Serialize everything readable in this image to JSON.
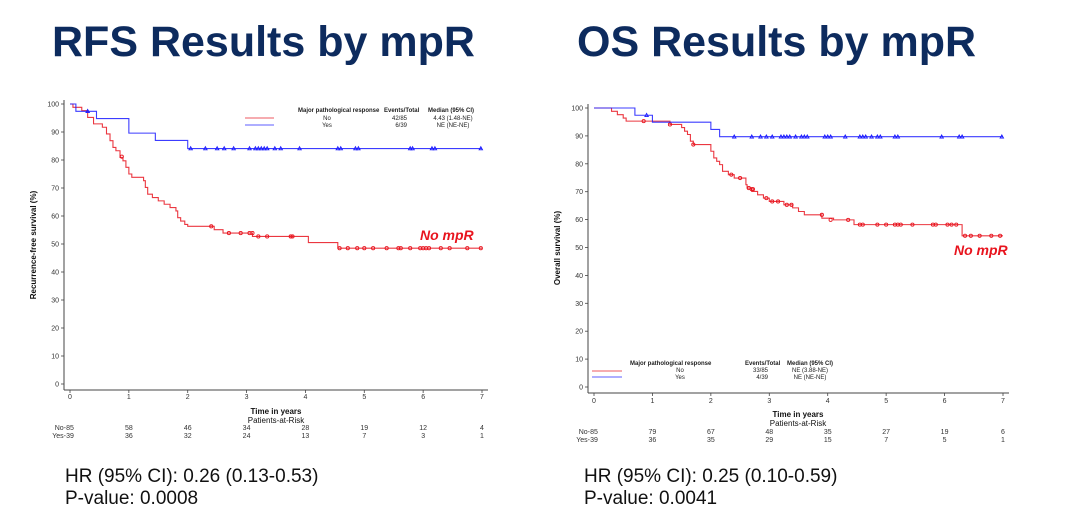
{
  "colors": {
    "title": "#0d2b5e",
    "no": "#e8141e",
    "yes": "#1a1aff",
    "axis": "#444444"
  },
  "chart_data": [
    {
      "type": "line",
      "title": "RFS Results by mpR",
      "xlabel": "Time in years",
      "ylabel": "Recurrence-free survival (%)",
      "xlim": [
        0,
        7
      ],
      "ylim": [
        0,
        100
      ],
      "x_ticks": [
        "0",
        "1",
        "2",
        "3",
        "4",
        "5",
        "6",
        "7"
      ],
      "y_ticks": [
        "0",
        "10",
        "20",
        "30",
        "40",
        "50",
        "60",
        "70",
        "80",
        "90",
        "100"
      ],
      "annotation": "No mpR",
      "legend": {
        "placement": "top-right",
        "header": [
          "Major pathological response",
          "Events/Total",
          "Median (95% CI)"
        ],
        "rows": [
          {
            "group": "No",
            "events": "42/85",
            "median": "4.43 (1.48-NE)"
          },
          {
            "group": "Yes",
            "events": "6/39",
            "median": "NE (NE-NE)"
          }
        ]
      },
      "risk_table": {
        "title": "Patients-at-Risk",
        "rows": [
          {
            "label": "No-",
            "values": [
              "85",
              "58",
              "46",
              "34",
              "28",
              "19",
              "12",
              "4"
            ]
          },
          {
            "label": "Yes-",
            "values": [
              "39",
              "36",
              "32",
              "24",
              "13",
              "7",
              "3",
              "1"
            ]
          }
        ]
      },
      "series": [
        {
          "name": "No",
          "steps": [
            [
              0,
              100
            ],
            [
              0.05,
              98.8
            ],
            [
              0.2,
              97.6
            ],
            [
              0.3,
              95.2
            ],
            [
              0.4,
              92.9
            ],
            [
              0.55,
              91.7
            ],
            [
              0.62,
              89.3
            ],
            [
              0.68,
              86.9
            ],
            [
              0.73,
              84.5
            ],
            [
              0.78,
              83.3
            ],
            [
              0.85,
              80.9
            ],
            [
              0.9,
              79.7
            ],
            [
              0.95,
              77.4
            ],
            [
              1.0,
              75
            ],
            [
              1.05,
              73.8
            ],
            [
              1.25,
              72.6
            ],
            [
              1.28,
              70.2
            ],
            [
              1.32,
              67.8
            ],
            [
              1.4,
              66.6
            ],
            [
              1.5,
              65.4
            ],
            [
              1.6,
              64.2
            ],
            [
              1.7,
              63
            ],
            [
              1.8,
              61.8
            ],
            [
              1.83,
              59.4
            ],
            [
              1.88,
              58.2
            ],
            [
              1.95,
              57
            ],
            [
              2.0,
              56.3
            ],
            [
              2.45,
              55.1
            ],
            [
              2.6,
              53.9
            ],
            [
              3.1,
              52.7
            ],
            [
              3.72,
              52.7
            ],
            [
              4.05,
              50.5
            ],
            [
              4.55,
              48.5
            ]
          ],
          "end": 7,
          "censored": [
            [
              0.88,
              81.2
            ],
            [
              2.4,
              56.3
            ],
            [
              2.7,
              53.9
            ],
            [
              2.9,
              53.9
            ],
            [
              3.05,
              53.9
            ],
            [
              3.1,
              53.9
            ],
            [
              3.2,
              52.7
            ],
            [
              3.35,
              52.7
            ],
            [
              3.75,
              52.7
            ],
            [
              3.78,
              52.7
            ],
            [
              4.58,
              48.5
            ],
            [
              4.72,
              48.5
            ],
            [
              4.88,
              48.5
            ],
            [
              5.0,
              48.5
            ],
            [
              5.15,
              48.5
            ],
            [
              5.38,
              48.5
            ],
            [
              5.58,
              48.5
            ],
            [
              5.62,
              48.5
            ],
            [
              5.78,
              48.5
            ],
            [
              5.95,
              48.5
            ],
            [
              6.0,
              48.5
            ],
            [
              6.05,
              48.5
            ],
            [
              6.1,
              48.5
            ],
            [
              6.3,
              48.5
            ],
            [
              6.45,
              48.5
            ],
            [
              6.75,
              48.5
            ],
            [
              6.98,
              48.5
            ]
          ]
        },
        {
          "name": "Yes",
          "steps": [
            [
              0,
              100
            ],
            [
              0.1,
              97.4
            ],
            [
              0.45,
              94.8
            ],
            [
              1.0,
              89.6
            ],
            [
              1.45,
              87
            ],
            [
              2.0,
              84.1
            ]
          ],
          "end": 7,
          "censored": [
            [
              0.3,
              97.4
            ],
            [
              2.05,
              84.1
            ],
            [
              2.3,
              84.1
            ],
            [
              2.5,
              84.1
            ],
            [
              2.62,
              84.1
            ],
            [
              2.78,
              84.1
            ],
            [
              3.05,
              84.1
            ],
            [
              3.15,
              84.1
            ],
            [
              3.2,
              84.1
            ],
            [
              3.25,
              84.1
            ],
            [
              3.3,
              84.1
            ],
            [
              3.35,
              84.1
            ],
            [
              3.48,
              84.1
            ],
            [
              3.58,
              84.1
            ],
            [
              3.9,
              84.1
            ],
            [
              4.55,
              84.1
            ],
            [
              4.6,
              84.1
            ],
            [
              4.85,
              84.1
            ],
            [
              4.9,
              84.1
            ],
            [
              5.78,
              84.1
            ],
            [
              5.82,
              84.1
            ],
            [
              6.15,
              84.1
            ],
            [
              6.2,
              84.1
            ],
            [
              6.98,
              84.1
            ]
          ]
        }
      ],
      "hr_text": "HR (95% CI): 0.26 (0.13-0.53)",
      "p_text": "P-value: 0.0008"
    },
    {
      "type": "line",
      "title": "OS Results by mpR",
      "xlabel": "Time in years",
      "ylabel": "Overall survival (%)",
      "xlim": [
        0,
        7
      ],
      "ylim": [
        0,
        100
      ],
      "x_ticks": [
        "0",
        "1",
        "2",
        "3",
        "4",
        "5",
        "6",
        "7"
      ],
      "y_ticks": [
        "0",
        "10",
        "20",
        "30",
        "40",
        "50",
        "60",
        "70",
        "80",
        "90",
        "100"
      ],
      "annotation": "No mpR",
      "legend": {
        "placement": "bottom-left",
        "header": [
          "Major pathological response",
          "Events/Total",
          "Median (95% CI)"
        ],
        "rows": [
          {
            "group": "No",
            "events": "33/85",
            "median": "NE (3.88-NE)"
          },
          {
            "group": "Yes",
            "events": "4/39",
            "median": "NE (NE-NE)"
          }
        ]
      },
      "risk_table": {
        "title": "Patients-at-Risk",
        "rows": [
          {
            "label": "No-",
            "values": [
              "85",
              "79",
              "67",
              "48",
              "35",
              "27",
              "19",
              "6"
            ]
          },
          {
            "label": "Yes-",
            "values": [
              "39",
              "36",
              "35",
              "29",
              "15",
              "7",
              "5",
              "1"
            ]
          }
        ]
      },
      "series": [
        {
          "name": "No",
          "steps": [
            [
              0,
              100
            ],
            [
              0.3,
              98.8
            ],
            [
              0.4,
              97.6
            ],
            [
              0.5,
              96.4
            ],
            [
              0.55,
              95.3
            ],
            [
              1.3,
              94.1
            ],
            [
              1.5,
              93
            ],
            [
              1.55,
              91.7
            ],
            [
              1.6,
              90.5
            ],
            [
              1.65,
              88.1
            ],
            [
              1.7,
              86.9
            ],
            [
              2.0,
              84.5
            ],
            [
              2.05,
              82.1
            ],
            [
              2.1,
              80.9
            ],
            [
              2.15,
              79.7
            ],
            [
              2.2,
              77.3
            ],
            [
              2.3,
              76.1
            ],
            [
              2.4,
              74.9
            ],
            [
              2.6,
              72.5
            ],
            [
              2.62,
              71.3
            ],
            [
              2.7,
              70.1
            ],
            [
              2.8,
              68.9
            ],
            [
              2.9,
              67.7
            ],
            [
              3.0,
              66.5
            ],
            [
              3.25,
              65.3
            ],
            [
              3.4,
              64.2
            ],
            [
              3.5,
              62.9
            ],
            [
              3.6,
              61.7
            ],
            [
              3.9,
              60.5
            ],
            [
              4.1,
              59.9
            ],
            [
              4.35,
              59.9
            ],
            [
              4.45,
              58.2
            ],
            [
              6.3,
              54.2
            ]
          ],
          "end": 7,
          "censored": [
            [
              0.85,
              95.3
            ],
            [
              1.3,
              94.1
            ],
            [
              1.7,
              86.9
            ],
            [
              2.35,
              76.1
            ],
            [
              2.5,
              74.9
            ],
            [
              2.65,
              71.3
            ],
            [
              2.7,
              70.9
            ],
            [
              2.72,
              70.9
            ],
            [
              2.95,
              67.7
            ],
            [
              3.05,
              66.5
            ],
            [
              3.15,
              66.5
            ],
            [
              3.3,
              65.3
            ],
            [
              3.38,
              65.3
            ],
            [
              3.9,
              61.7
            ],
            [
              4.05,
              59.9
            ],
            [
              4.35,
              59.9
            ],
            [
              4.55,
              58.2
            ],
            [
              4.6,
              58.2
            ],
            [
              4.85,
              58.2
            ],
            [
              5.0,
              58.2
            ],
            [
              5.15,
              58.2
            ],
            [
              5.2,
              58.2
            ],
            [
              5.25,
              58.2
            ],
            [
              5.45,
              58.2
            ],
            [
              5.8,
              58.2
            ],
            [
              5.85,
              58.2
            ],
            [
              6.05,
              58.2
            ],
            [
              6.12,
              58.2
            ],
            [
              6.2,
              58.2
            ],
            [
              6.35,
              54.2
            ],
            [
              6.45,
              54.2
            ],
            [
              6.6,
              54.2
            ],
            [
              6.8,
              54.2
            ],
            [
              6.95,
              54.2
            ]
          ]
        },
        {
          "name": "Yes",
          "steps": [
            [
              0,
              100
            ],
            [
              0.7,
              97.4
            ],
            [
              1.0,
              94.9
            ],
            [
              2.0,
              92.3
            ],
            [
              2.15,
              89.7
            ]
          ],
          "end": 7,
          "censored": [
            [
              0.9,
              97.4
            ],
            [
              2.4,
              89.7
            ],
            [
              2.7,
              89.7
            ],
            [
              2.85,
              89.7
            ],
            [
              2.95,
              89.7
            ],
            [
              3.05,
              89.7
            ],
            [
              3.2,
              89.7
            ],
            [
              3.25,
              89.7
            ],
            [
              3.3,
              89.7
            ],
            [
              3.35,
              89.7
            ],
            [
              3.45,
              89.7
            ],
            [
              3.55,
              89.7
            ],
            [
              3.6,
              89.7
            ],
            [
              3.65,
              89.7
            ],
            [
              3.95,
              89.7
            ],
            [
              4.0,
              89.7
            ],
            [
              4.05,
              89.7
            ],
            [
              4.3,
              89.7
            ],
            [
              4.55,
              89.7
            ],
            [
              4.6,
              89.7
            ],
            [
              4.65,
              89.7
            ],
            [
              4.75,
              89.7
            ],
            [
              4.85,
              89.7
            ],
            [
              4.9,
              89.7
            ],
            [
              5.15,
              89.7
            ],
            [
              5.2,
              89.7
            ],
            [
              5.95,
              89.7
            ],
            [
              6.25,
              89.7
            ],
            [
              6.3,
              89.7
            ],
            [
              6.98,
              89.7
            ]
          ]
        }
      ],
      "hr_text": "HR (95% CI): 0.25 (0.10-0.59)",
      "p_text": "P-value: 0.0041"
    }
  ]
}
